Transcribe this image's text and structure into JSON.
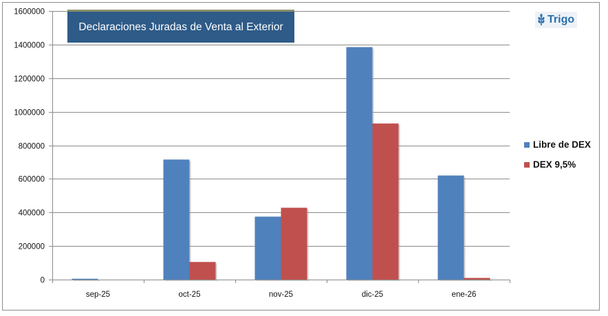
{
  "badge": {
    "label": "Trigo",
    "icon": "wheat-icon"
  },
  "chart_data": {
    "type": "bar",
    "title": "Declaraciones Juradas de Venta al Exterior",
    "categories": [
      "sep-25",
      "oct-25",
      "nov-25",
      "dic-25",
      "ene-26"
    ],
    "series": [
      {
        "name": "Libre de DEX",
        "color": "#4f81bd",
        "values": [
          5000,
          715000,
          375000,
          1385000,
          620000
        ]
      },
      {
        "name": "DEX 9,5%",
        "color": "#c0504d",
        "values": [
          0,
          105000,
          428000,
          930000,
          10000
        ]
      }
    ],
    "ylim": [
      0,
      1600000
    ],
    "yticks": [
      0,
      200000,
      400000,
      600000,
      800000,
      1000000,
      1200000,
      1400000,
      1600000
    ],
    "ytick_labels": [
      "0",
      "200000",
      "400000",
      "600000",
      "800000",
      "1000000",
      "1200000",
      "1400000",
      "1600000"
    ],
    "grid": true,
    "legend": "right",
    "xlabel": "",
    "ylabel": ""
  }
}
